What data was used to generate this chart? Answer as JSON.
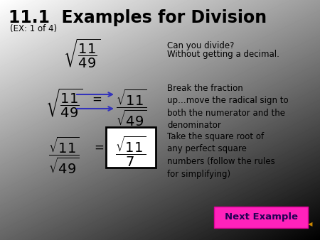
{
  "title": "11.1  Examples for Division",
  "subtitle": "(EX: 1 of 4)",
  "note1_line1": "Can you divide?",
  "note1_line2": "Without getting a decimal.",
  "note2": "Break the fraction\nup…move the radical sign to\nboth the numerator and the\ndenominator",
  "note3": "Take the square root of\nany perfect square\nnumbers (follow the rules\nfor simplifying)",
  "button_text": "Next Example",
  "button_bg": "#ff22bb",
  "button_text_color": "#220055",
  "arrow_color": "#3333bb",
  "title_fontsize": 17,
  "subtitle_fontsize": 8.5,
  "math_fontsize": 14,
  "note_fontsize": 8.5
}
